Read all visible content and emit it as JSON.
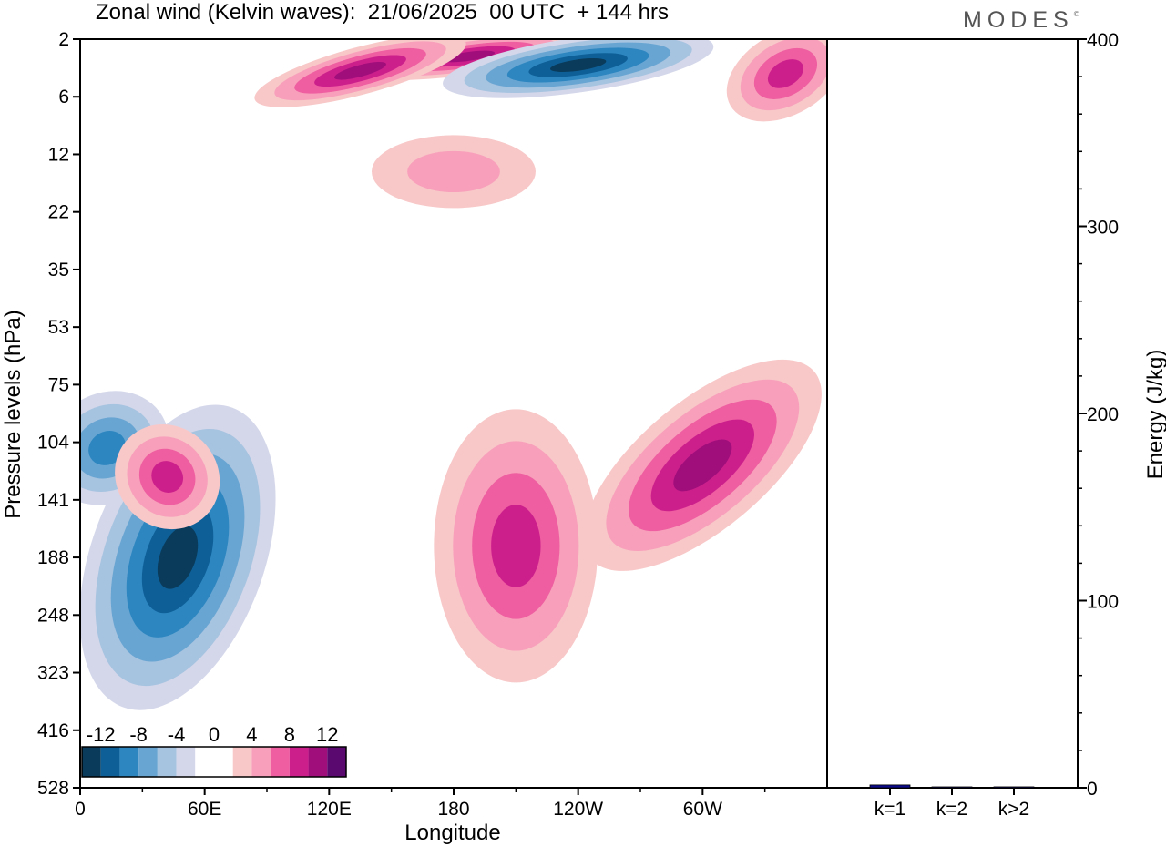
{
  "title": "Zonal wind (Kelvin waves):  21/06/2025  00 UTC  + 144 hrs",
  "logo": "MODES",
  "colors": {
    "neg": [
      "#0a3b5a",
      "#0e5f97",
      "#2d86c0",
      "#68a5d2",
      "#a6c3e0",
      "#d4d7ea"
    ],
    "pos": [
      "#f8c8c8",
      "#f8a0bb",
      "#ee5ea0",
      "#cc1f8c",
      "#a00e7c",
      "#5a0a6e"
    ],
    "bar": "#0b0b8c"
  },
  "chart_data": [
    {
      "type": "heatmap",
      "title": "Zonal wind (Kelvin waves):  21/06/2025  00 UTC  + 144 hrs",
      "xlabel": "Longitude",
      "ylabel": "Pressure levels (hPa)",
      "x_ticks": [
        "0",
        "60E",
        "120E",
        "180",
        "120W",
        "60W"
      ],
      "y_ticks": [
        "2",
        "6",
        "12",
        "22",
        "35",
        "53",
        "75",
        "104",
        "141",
        "188",
        "248",
        "323",
        "416",
        "528"
      ],
      "colorbar_labels": [
        "-12",
        "-8",
        "-4",
        "0",
        "4",
        "8",
        "12"
      ],
      "levels": [
        -12,
        -10,
        -8,
        -6,
        -4,
        -2,
        0,
        2,
        4,
        6,
        8,
        10,
        12
      ],
      "features": [
        {
          "lon": 47,
          "p_index": 9.0,
          "value": -14
        },
        {
          "lon": 13,
          "p_index": 7.1,
          "value": -7
        },
        {
          "lon": 187,
          "p_index": 0.3,
          "value": 10
        },
        {
          "lon": 240,
          "p_index": 0.45,
          "value": -13
        },
        {
          "lon": 135,
          "p_index": 0.55,
          "value": 10
        },
        {
          "lon": 210,
          "p_index": 8.8,
          "value": 7
        },
        {
          "lon": 300,
          "p_index": 7.4,
          "value": 9
        },
        {
          "lon": 340,
          "p_index": 0.6,
          "value": 8
        },
        {
          "lon": 42,
          "p_index": 7.6,
          "value": 7
        },
        {
          "lon": 180,
          "p_index": 2.3,
          "value": 3
        }
      ]
    },
    {
      "type": "bar",
      "categories": [
        "k=1",
        "k=2",
        "k>2"
      ],
      "values": [
        1.5,
        0.3,
        0.5
      ],
      "ylabel": "Energy (J/kg)",
      "ylim": [
        0,
        400
      ],
      "y_ticks": [
        "0",
        "100",
        "200",
        "300",
        "400"
      ]
    }
  ]
}
